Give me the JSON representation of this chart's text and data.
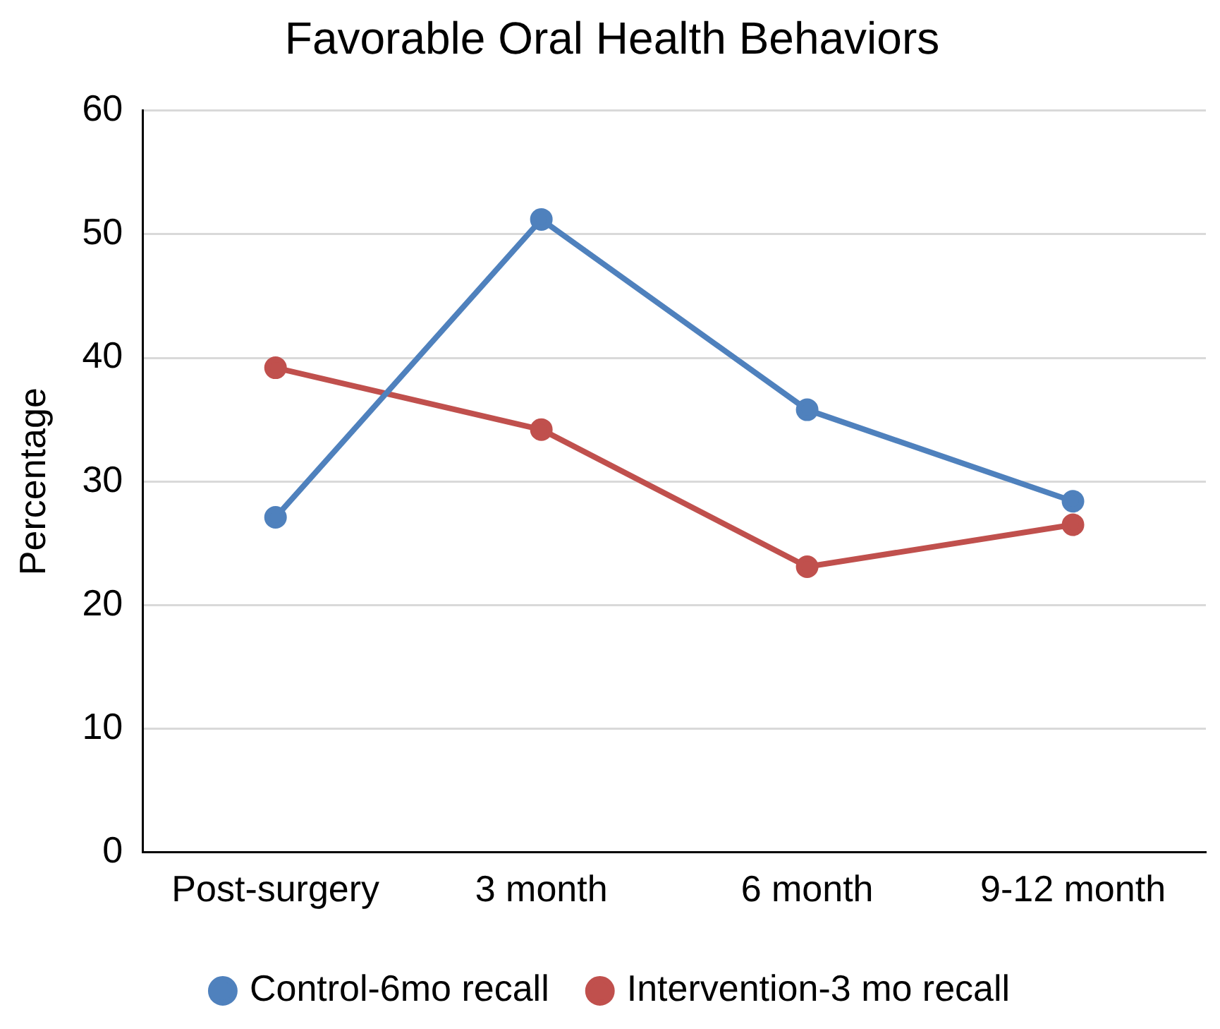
{
  "chart_data": {
    "type": "line",
    "title": "Favorable Oral Health Behaviors",
    "ylabel": "Percentage",
    "categories": [
      "Post-surgery",
      "3 month",
      "6 month",
      "9-12 month"
    ],
    "series": [
      {
        "name": "Control-6mo recall",
        "color": "#4f81bd",
        "values": [
          27.1,
          51.2,
          35.8,
          28.4
        ]
      },
      {
        "name": "Intervention-3 mo recall",
        "color": "#c0504d",
        "values": [
          39.2,
          34.2,
          23.1,
          26.5
        ]
      }
    ],
    "ylim": [
      0,
      60
    ],
    "yticks": [
      0,
      10,
      20,
      30,
      40,
      50,
      60
    ],
    "grid": "y",
    "legend": "bottom",
    "marker": "circle",
    "line_style": "solid"
  }
}
